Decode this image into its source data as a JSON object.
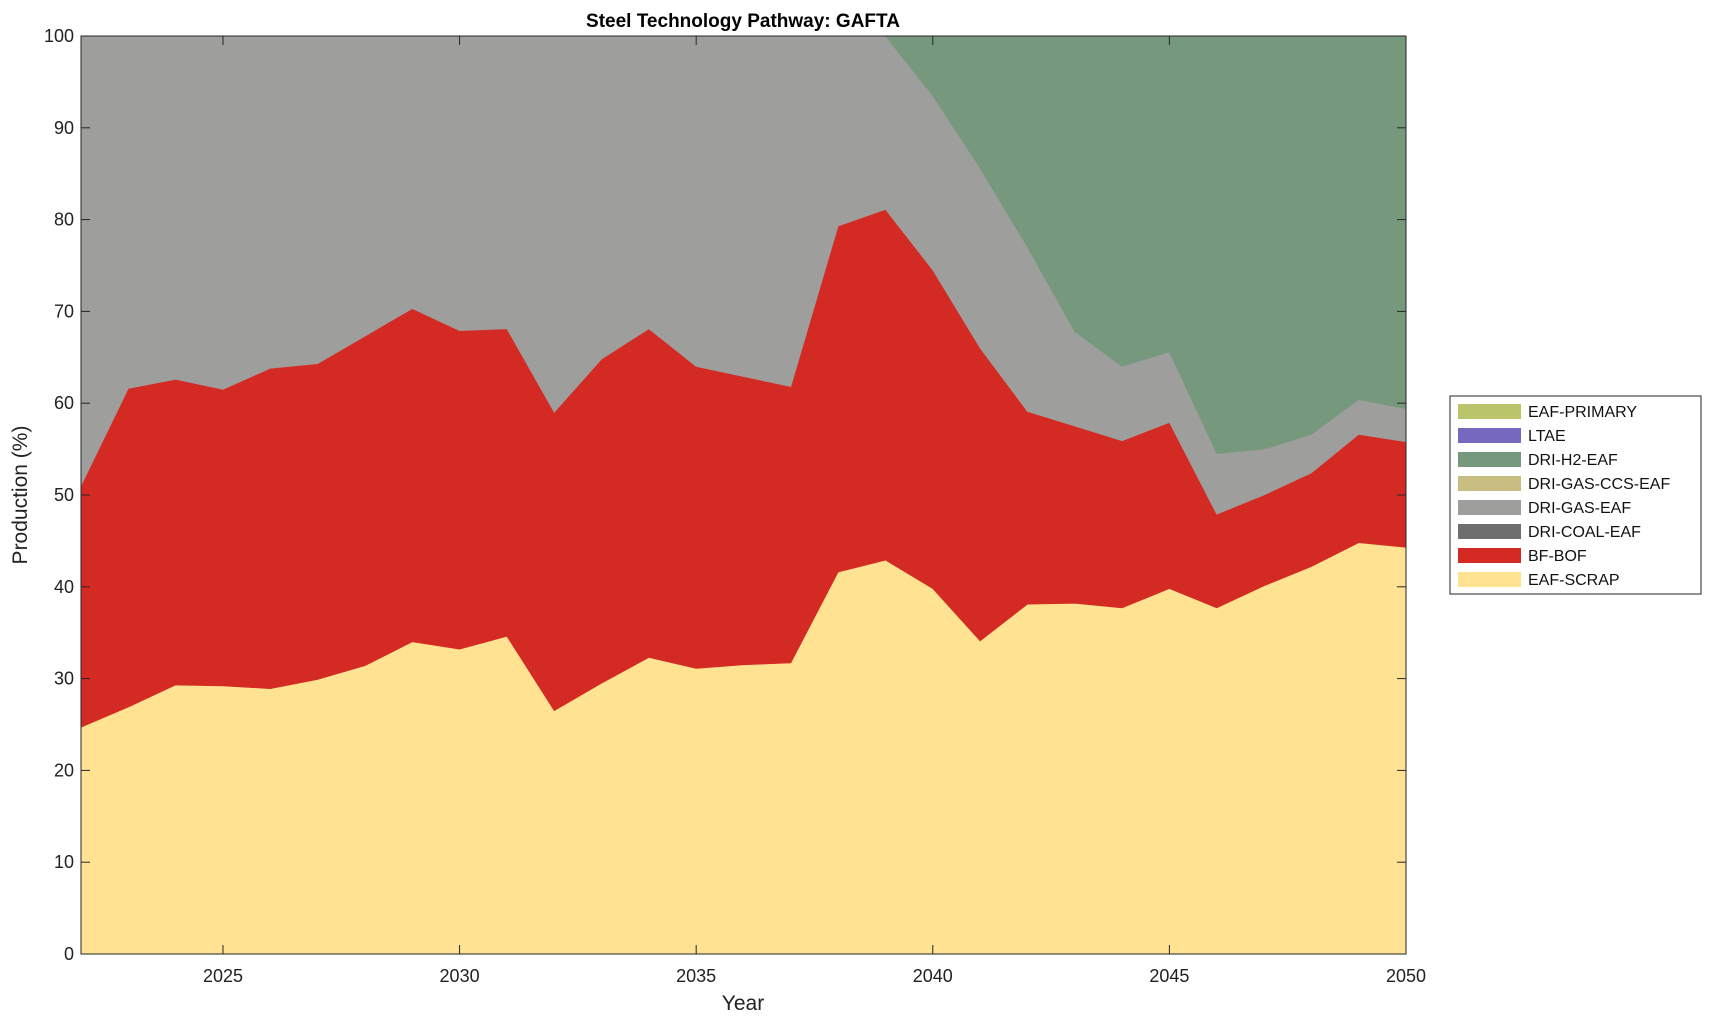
{
  "chart_data": {
    "type": "area",
    "stacked": true,
    "title": "Steel Technology Pathway: GAFTA",
    "xlabel": "Year",
    "ylabel": "Production (%)",
    "xlim": [
      2022,
      2050
    ],
    "ylim": [
      0,
      100
    ],
    "xticks": [
      2025,
      2030,
      2035,
      2040,
      2045,
      2050
    ],
    "yticks": [
      0,
      10,
      20,
      30,
      40,
      50,
      60,
      70,
      80,
      90,
      100
    ],
    "grid": false,
    "legend_position": "right",
    "x": [
      2022,
      2023,
      2024,
      2025,
      2026,
      2027,
      2028,
      2029,
      2030,
      2031,
      2032,
      2033,
      2034,
      2035,
      2036,
      2037,
      2038,
      2039,
      2040,
      2041,
      2042,
      2043,
      2044,
      2045,
      2046,
      2047,
      2048,
      2049,
      2050
    ],
    "series": [
      {
        "name": "EAF-SCRAP",
        "color": "#FFE392",
        "values": [
          24.7,
          26.9,
          29.3,
          29.2,
          28.9,
          29.9,
          31.4,
          34.0,
          33.2,
          34.6,
          26.5,
          29.5,
          32.3,
          31.1,
          31.5,
          31.7,
          41.6,
          42.9,
          39.8,
          34.1,
          38.1,
          38.2,
          37.7,
          39.8,
          37.7,
          40.1,
          42.2,
          44.8,
          44.3
        ]
      },
      {
        "name": "BF-BOF",
        "color": "#D42A24",
        "values": [
          26.3,
          34.7,
          33.3,
          32.3,
          34.9,
          34.4,
          35.9,
          36.3,
          34.7,
          33.5,
          32.5,
          35.3,
          35.8,
          32.9,
          31.4,
          30.1,
          37.7,
          38.2,
          34.7,
          31.9,
          21.0,
          19.3,
          18.2,
          18.1,
          10.2,
          9.9,
          10.2,
          11.8,
          11.5
        ]
      },
      {
        "name": "DRI-COAL-EAF",
        "color": "#6E6E6E",
        "values": [
          0,
          0,
          0,
          0,
          0,
          0,
          0,
          0,
          0,
          0,
          0,
          0,
          0,
          0,
          0,
          0,
          0,
          0,
          0,
          0,
          0,
          0,
          0,
          0,
          0,
          0,
          0,
          0,
          0
        ]
      },
      {
        "name": "DRI-GAS-EAF",
        "color": "#9E9E9C",
        "values": [
          49.0,
          38.4,
          37.4,
          38.5,
          36.2,
          35.7,
          32.7,
          29.7,
          32.1,
          31.9,
          41.0,
          35.2,
          31.9,
          36.0,
          37.1,
          38.2,
          20.7,
          18.9,
          19.0,
          19.6,
          17.9,
          10.3,
          8.1,
          7.7,
          6.6,
          5.0,
          4.2,
          3.8,
          3.6
        ]
      },
      {
        "name": "DRI-GAS-CCS-EAF",
        "color": "#C8BE82",
        "values": [
          0,
          0,
          0,
          0,
          0,
          0,
          0,
          0,
          0,
          0,
          0,
          0,
          0,
          0,
          0,
          0,
          0,
          0,
          0,
          0,
          0,
          0,
          0,
          0,
          0,
          0,
          0,
          0,
          0
        ]
      },
      {
        "name": "DRI-H2-EAF",
        "color": "#76987D",
        "values": [
          0,
          0,
          0,
          0,
          0,
          0,
          0,
          0,
          0,
          0,
          0,
          0,
          0,
          0,
          0,
          0,
          0,
          0,
          6.5,
          14.4,
          23.0,
          32.2,
          36.0,
          34.4,
          45.5,
          45.0,
          43.4,
          39.6,
          40.6
        ]
      },
      {
        "name": "LTAE",
        "color": "#7668BE",
        "values": [
          0,
          0,
          0,
          0,
          0,
          0,
          0,
          0,
          0,
          0,
          0,
          0,
          0,
          0,
          0,
          0,
          0,
          0,
          0,
          0,
          0,
          0,
          0,
          0,
          0,
          0,
          0,
          0,
          0
        ]
      },
      {
        "name": "EAF-PRIMARY",
        "color": "#BAC46A",
        "values": [
          0,
          0,
          0,
          0,
          0,
          0,
          0,
          0,
          0,
          0,
          0,
          0,
          0,
          0,
          0,
          0,
          0,
          0,
          0,
          0,
          0,
          0,
          0,
          0,
          0,
          0,
          0,
          0,
          0
        ]
      }
    ]
  }
}
